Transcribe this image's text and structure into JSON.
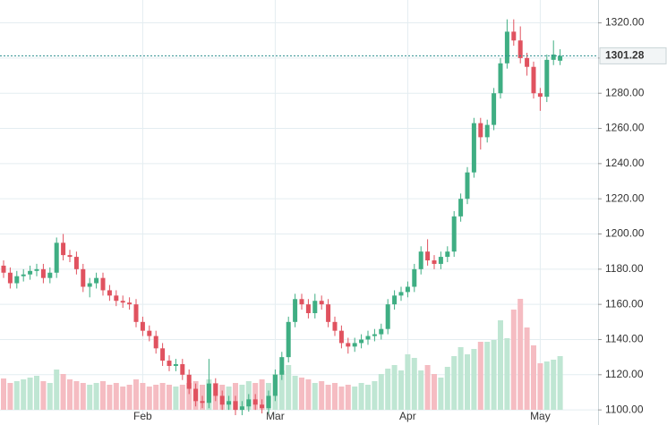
{
  "chart_data": {
    "type": "candlestick",
    "categories": [
      null,
      null,
      null,
      null,
      null,
      null,
      null,
      null,
      null,
      null,
      null,
      null,
      null,
      null,
      null,
      null,
      null,
      null,
      null,
      null,
      null,
      "Feb",
      null,
      null,
      null,
      null,
      null,
      null,
      null,
      null,
      null,
      null,
      null,
      null,
      null,
      null,
      null,
      null,
      null,
      null,
      null,
      "Mar",
      null,
      null,
      null,
      null,
      null,
      null,
      null,
      null,
      null,
      null,
      null,
      null,
      null,
      null,
      null,
      null,
      null,
      null,
      null,
      "Apr",
      null,
      null,
      null,
      null,
      null,
      null,
      null,
      null,
      null,
      null,
      null,
      null,
      null,
      null,
      null,
      null,
      null,
      null,
      null,
      "May",
      null,
      null,
      null
    ],
    "open": [
      1182,
      1178,
      1172,
      1176,
      1177,
      1179,
      1180,
      1175,
      1178,
      1195,
      1188,
      1187,
      1180,
      1170,
      1172,
      1175,
      1168,
      1165,
      1162,
      1161,
      1160,
      1150,
      1145,
      1142,
      1135,
      1128,
      1125,
      1126,
      1120,
      1112,
      1105,
      1104,
      1115,
      1108,
      1103,
      1105,
      1100,
      1102,
      1106,
      1103,
      1101,
      1108,
      1120,
      1130,
      1150,
      1163,
      1160,
      1155,
      1162,
      1160,
      1150,
      1145,
      1138,
      1136,
      1138,
      1140,
      1142,
      1143,
      1146,
      1160,
      1165,
      1167,
      1170,
      1180,
      1190,
      1185,
      1183,
      1187,
      1190,
      1210,
      1220,
      1235,
      1263,
      1255,
      1262,
      1280,
      1297,
      1315,
      1310,
      1300,
      1295,
      1280,
      1278,
      1299,
      1298.5
    ],
    "high": [
      1185,
      1181,
      1179,
      1180,
      1182,
      1183,
      1183,
      1181,
      1198,
      1200,
      1191,
      1190,
      1183,
      1175,
      1178,
      1178,
      1171,
      1168,
      1165,
      1164,
      1163,
      1153,
      1148,
      1145,
      1138,
      1131,
      1129,
      1129,
      1123,
      1115,
      1108,
      1129,
      1118,
      1111,
      1108,
      1108,
      1105,
      1109,
      1109,
      1106,
      1111,
      1123,
      1133,
      1153,
      1166,
      1166,
      1163,
      1166,
      1165,
      1163,
      1153,
      1148,
      1141,
      1141,
      1143,
      1145,
      1146,
      1149,
      1163,
      1168,
      1170,
      1173,
      1183,
      1193,
      1197,
      1188,
      1190,
      1193,
      1213,
      1223,
      1238,
      1266,
      1266,
      1265,
      1283,
      1300,
      1322,
      1322,
      1318,
      1303,
      1298,
      1283,
      1302,
      1310,
      1305
    ],
    "low": [
      1175,
      1169,
      1169,
      1173,
      1174,
      1176,
      1172,
      1172,
      1175,
      1185,
      1184,
      1177,
      1167,
      1164,
      1169,
      1165,
      1162,
      1159,
      1158,
      1157,
      1147,
      1142,
      1139,
      1132,
      1125,
      1122,
      1122,
      1117,
      1109,
      1102,
      1101,
      1101,
      1105,
      1100,
      1100,
      1097,
      1097,
      1099,
      1100,
      1098,
      1098,
      1105,
      1117,
      1127,
      1147,
      1157,
      1152,
      1152,
      1157,
      1147,
      1142,
      1135,
      1132,
      1133,
      1135,
      1137,
      1139,
      1140,
      1143,
      1157,
      1162,
      1164,
      1167,
      1177,
      1182,
      1180,
      1180,
      1184,
      1187,
      1207,
      1217,
      1232,
      1248,
      1252,
      1259,
      1277,
      1294,
      1307,
      1297,
      1290,
      1277,
      1270,
      1275,
      1296,
      1296
    ],
    "close": [
      1178,
      1172,
      1176,
      1177,
      1179,
      1180,
      1175,
      1178,
      1195,
      1188,
      1187,
      1180,
      1170,
      1172,
      1175,
      1168,
      1165,
      1162,
      1161,
      1160,
      1150,
      1145,
      1142,
      1135,
      1128,
      1125,
      1126,
      1120,
      1112,
      1105,
      1104,
      1115,
      1108,
      1103,
      1105,
      1100,
      1102,
      1106,
      1103,
      1101,
      1108,
      1120,
      1130,
      1150,
      1163,
      1160,
      1155,
      1162,
      1160,
      1150,
      1145,
      1138,
      1136,
      1138,
      1140,
      1142,
      1143,
      1146,
      1160,
      1165,
      1167,
      1170,
      1180,
      1190,
      1185,
      1183,
      1187,
      1190,
      1210,
      1220,
      1235,
      1263,
      1255,
      1262,
      1280,
      1297,
      1315,
      1310,
      1300,
      1295,
      1280,
      1278,
      1299,
      1302,
      1301.28
    ],
    "volume": [
      35,
      30,
      32,
      34,
      36,
      38,
      32,
      30,
      45,
      40,
      34,
      32,
      30,
      28,
      30,
      32,
      28,
      30,
      26,
      28,
      34,
      30,
      26,
      28,
      30,
      28,
      26,
      28,
      30,
      32,
      28,
      34,
      30,
      28,
      26,
      30,
      28,
      32,
      30,
      34,
      30,
      40,
      44,
      50,
      38,
      36,
      34,
      30,
      32,
      28,
      30,
      26,
      28,
      26,
      30,
      28,
      32,
      40,
      46,
      50,
      44,
      62,
      58,
      44,
      50,
      40,
      36,
      48,
      60,
      70,
      62,
      68,
      76,
      76,
      78,
      100,
      80,
      112,
      124,
      92,
      72,
      52,
      54,
      56,
      60
    ],
    "up_color": "#3fae83",
    "down_color": "#e0525f",
    "volume_up_color": "#bfe6d3",
    "volume_down_color": "#f5bcc2",
    "ylim": [
      1096,
      1333
    ],
    "yticks": [
      {
        "value": 1100,
        "label": "1100.00"
      },
      {
        "value": 1120,
        "label": "1120.00"
      },
      {
        "value": 1140,
        "label": "1140.00"
      },
      {
        "value": 1160,
        "label": "1160.00"
      },
      {
        "value": 1180,
        "label": "1180.00"
      },
      {
        "value": 1200,
        "label": "1200.00"
      },
      {
        "value": 1220,
        "label": "1220.00"
      },
      {
        "value": 1240,
        "label": "1240.00"
      },
      {
        "value": 1260,
        "label": "1260.00"
      },
      {
        "value": 1280,
        "label": "1280.00"
      },
      {
        "value": 1300,
        "label": "1300.00"
      },
      {
        "value": 1320,
        "label": "1320.00"
      }
    ],
    "vlim": [
      0,
      150
    ],
    "grid": true
  }
}
